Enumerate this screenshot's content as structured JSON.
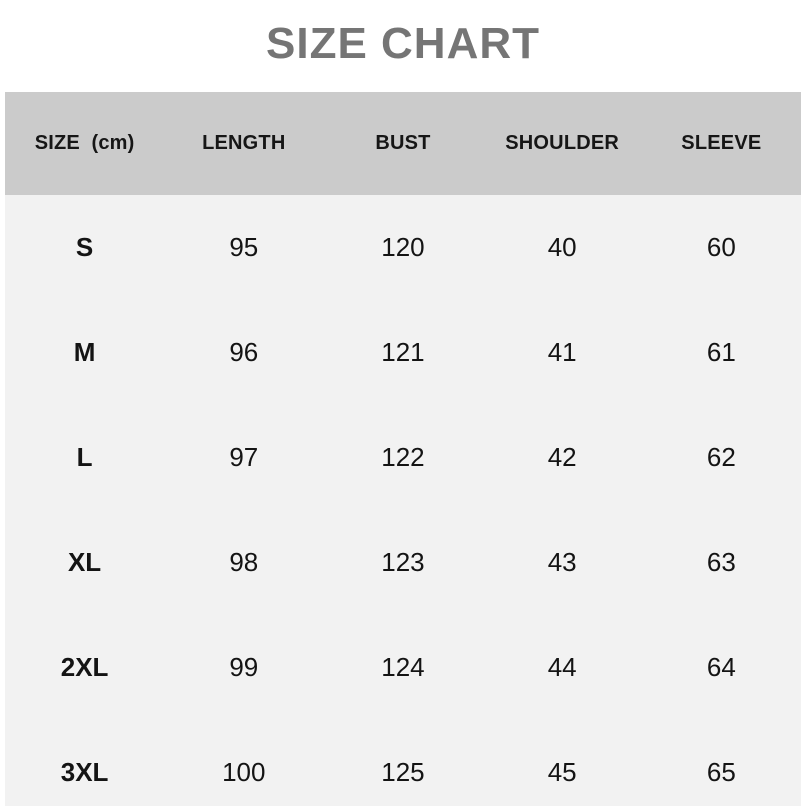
{
  "title": "SIZE CHART",
  "table": {
    "headers": [
      "SIZE  (cm)",
      "LENGTH",
      "BUST",
      "SHOULDER",
      "SLEEVE"
    ],
    "rows": [
      {
        "size": "S",
        "length": "95",
        "bust": "120",
        "shoulder": "40",
        "sleeve": "60"
      },
      {
        "size": "M",
        "length": "96",
        "bust": "121",
        "shoulder": "41",
        "sleeve": "61"
      },
      {
        "size": "L",
        "length": "97",
        "bust": "122",
        "shoulder": "42",
        "sleeve": "62"
      },
      {
        "size": "XL",
        "length": "98",
        "bust": "123",
        "shoulder": "43",
        "sleeve": "63"
      },
      {
        "size": "2XL",
        "length": "99",
        "bust": "124",
        "shoulder": "44",
        "sleeve": "64"
      },
      {
        "size": "3XL",
        "length": "100",
        "bust": "125",
        "shoulder": "45",
        "sleeve": "65"
      }
    ]
  },
  "colors": {
    "title_text": "#757575",
    "header_band_bg": "#cbcbcb",
    "header_text": "#161616",
    "body_bg": "#f2f2f2",
    "data_text": "#141414",
    "page_bg": "#ffffff"
  }
}
